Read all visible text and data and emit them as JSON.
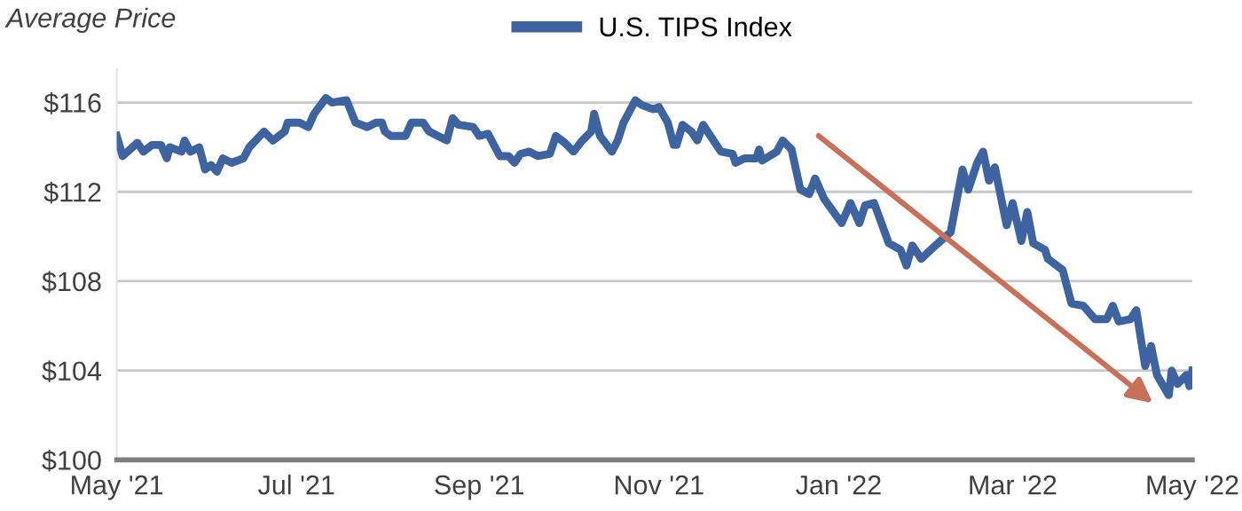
{
  "chart_data": {
    "type": "line",
    "ylabel": "Average Price",
    "legend": "top",
    "grid": "y",
    "marker": "none",
    "line_style": "solid",
    "xlim": [
      "2021-05-01",
      "2022-05-01"
    ],
    "xticks": [
      {
        "value": "2021-05-01",
        "label": "May '21"
      },
      {
        "value": "2021-07-01",
        "label": "Jul '21"
      },
      {
        "value": "2021-09-01",
        "label": "Sep '21"
      },
      {
        "value": "2021-11-01",
        "label": "Nov '21"
      },
      {
        "value": "2022-01-01",
        "label": "Jan '22"
      },
      {
        "value": "2022-03-01",
        "label": "Mar '22"
      },
      {
        "value": "2022-05-01",
        "label": "May '22"
      }
    ],
    "ylim": [
      100,
      117.5
    ],
    "yticks": [
      {
        "value": 100,
        "label": "$100"
      },
      {
        "value": 104,
        "label": "$104"
      },
      {
        "value": 108,
        "label": "$108"
      },
      {
        "value": 112,
        "label": "$112"
      },
      {
        "value": 116,
        "label": "$116"
      }
    ],
    "series": [
      {
        "name": "U.S. TIPS Index",
        "color": "#3d64a0",
        "x": [
          "2021-05-01",
          "2021-05-03",
          "2021-05-08",
          "2021-05-10",
          "2021-05-13",
          "2021-05-16",
          "2021-05-18",
          "2021-05-19",
          "2021-05-23",
          "2021-05-24",
          "2021-05-26",
          "2021-05-29",
          "2021-05-31",
          "2021-06-02",
          "2021-06-04",
          "2021-06-06",
          "2021-06-09",
          "2021-06-13",
          "2021-06-15",
          "2021-06-20",
          "2021-06-23",
          "2021-06-27",
          "2021-06-28",
          "2021-07-02",
          "2021-07-05",
          "2021-07-07",
          "2021-07-11",
          "2021-07-13",
          "2021-07-18",
          "2021-07-21",
          "2021-07-25",
          "2021-07-28",
          "2021-07-30",
          "2021-07-31",
          "2021-08-02",
          "2021-08-07",
          "2021-08-09",
          "2021-08-13",
          "2021-08-15",
          "2021-08-21",
          "2021-08-23",
          "2021-08-25",
          "2021-08-30",
          "2021-09-01",
          "2021-09-04",
          "2021-09-08",
          "2021-09-11",
          "2021-09-13",
          "2021-09-15",
          "2021-09-18",
          "2021-09-21",
          "2021-09-25",
          "2021-09-27",
          "2021-09-30",
          "2021-10-03",
          "2021-10-06",
          "2021-10-09",
          "2021-10-10",
          "2021-10-12",
          "2021-10-16",
          "2021-10-18",
          "2021-10-20",
          "2021-10-24",
          "2021-10-26",
          "2021-10-30",
          "2021-11-01",
          "2021-11-04",
          "2021-11-06",
          "2021-11-07",
          "2021-11-09",
          "2021-11-12",
          "2021-11-14",
          "2021-11-16",
          "2021-11-22",
          "2021-11-26",
          "2021-11-27",
          "2021-11-30",
          "2021-12-04",
          "2021-12-05",
          "2021-12-06",
          "2021-12-11",
          "2021-12-13",
          "2021-12-16",
          "2021-12-19",
          "2021-12-22",
          "2021-12-24",
          "2021-12-27",
          "2022-01-02",
          "2022-01-05",
          "2022-01-08",
          "2022-01-10",
          "2022-01-13",
          "2022-01-18",
          "2022-01-22",
          "2022-01-24",
          "2022-01-26",
          "2022-01-29",
          "2022-02-02",
          "2022-02-08",
          "2022-02-12",
          "2022-02-14",
          "2022-02-17",
          "2022-02-19",
          "2022-02-21",
          "2022-02-23",
          "2022-02-27",
          "2022-03-01",
          "2022-03-04",
          "2022-03-06",
          "2022-03-08",
          "2022-03-12",
          "2022-03-13",
          "2022-03-18",
          "2022-03-21",
          "2022-03-25",
          "2022-03-29",
          "2022-04-02",
          "2022-04-04",
          "2022-04-06",
          "2022-04-10",
          "2022-04-12",
          "2022-04-15",
          "2022-04-17",
          "2022-04-19",
          "2022-04-23",
          "2022-04-24",
          "2022-04-26",
          "2022-04-29",
          "2022-04-30",
          "2022-05-01"
        ],
        "values": [
          114.5,
          113.6,
          114.2,
          113.8,
          114.1,
          114.1,
          113.5,
          114.0,
          113.8,
          114.3,
          113.8,
          114.0,
          113.0,
          113.2,
          112.9,
          113.5,
          113.3,
          113.5,
          114.0,
          114.7,
          114.3,
          114.7,
          115.1,
          115.1,
          114.9,
          115.5,
          116.2,
          116.0,
          116.1,
          115.1,
          114.9,
          115.1,
          115.1,
          114.7,
          114.5,
          114.5,
          115.1,
          115.1,
          114.7,
          114.3,
          115.3,
          115.0,
          114.9,
          114.5,
          114.6,
          113.6,
          113.6,
          113.3,
          113.7,
          113.8,
          113.6,
          113.7,
          114.5,
          114.2,
          113.8,
          114.3,
          114.7,
          115.5,
          114.5,
          113.8,
          114.3,
          115.1,
          116.1,
          115.9,
          115.7,
          115.8,
          115.1,
          114.1,
          114.1,
          115.0,
          114.7,
          114.3,
          115.0,
          113.8,
          113.7,
          113.3,
          113.5,
          113.5,
          113.9,
          113.4,
          113.8,
          114.3,
          113.9,
          112.1,
          111.9,
          112.6,
          111.7,
          110.6,
          111.5,
          110.6,
          111.4,
          111.5,
          109.7,
          109.4,
          108.7,
          109.6,
          109.0,
          109.5,
          110.2,
          113.0,
          112.1,
          113.3,
          113.8,
          112.5,
          113.1,
          110.5,
          111.5,
          109.8,
          111.1,
          109.7,
          109.4,
          109.0,
          108.5,
          107.0,
          106.9,
          106.3,
          106.3,
          106.9,
          106.2,
          106.3,
          106.7,
          104.2,
          105.1,
          103.8,
          102.9,
          104.0,
          103.4,
          103.8,
          103.3,
          104.0
        ]
      }
    ]
  }
}
